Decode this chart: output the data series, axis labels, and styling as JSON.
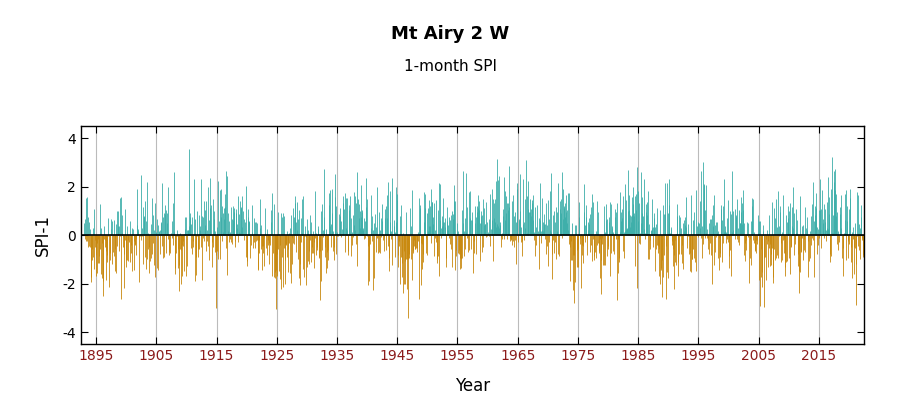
{
  "title": "Mt Airy 2 W",
  "subtitle": "1-month SPI",
  "xlabel": "Year",
  "ylabel": "SPI-1",
  "ylim": [
    -4.5,
    4.5
  ],
  "yticks": [
    -4,
    -2,
    0,
    2,
    4
  ],
  "xticks": [
    1895,
    1905,
    1915,
    1925,
    1935,
    1945,
    1955,
    1965,
    1975,
    1985,
    1995,
    2005,
    2015
  ],
  "xlim": [
    1892.5,
    2022.5
  ],
  "positive_color": "#3AADA8",
  "negative_color": "#C8870A",
  "zero_line_color": "#000000",
  "grid_color": "#BBBBBB",
  "title_fontsize": 13,
  "subtitle_fontsize": 11,
  "axis_label_fontsize": 12,
  "tick_fontsize": 10,
  "tick_label_color": "#8B1A1A",
  "background_color": "#FFFFFF",
  "start_year": 1893,
  "end_year": 2022
}
